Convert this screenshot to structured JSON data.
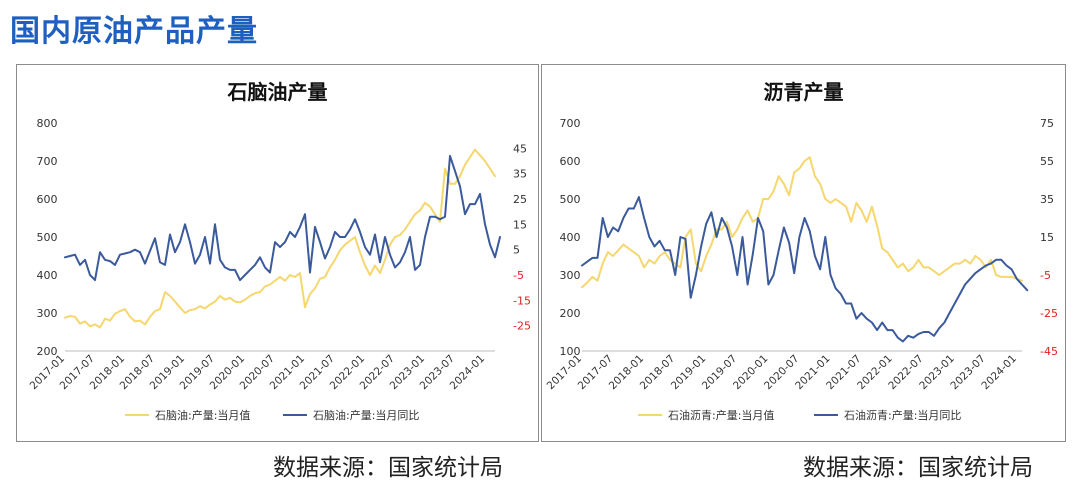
{
  "page": {
    "title": "国内原油产品产量",
    "source_left": "数据来源：国家统计局",
    "source_right": "数据来源：国家统计局"
  },
  "colors": {
    "title": "#1f5fbf",
    "value_line": "#f5d76e",
    "yoy_line": "#3a5a9c",
    "right_tick_neg": "#e02020",
    "axis_text": "#333333"
  },
  "chart_data": [
    {
      "type": "line",
      "title": "石脑油产量",
      "ylim_left": [
        200,
        800
      ],
      "yticks_left": [
        200,
        300,
        400,
        500,
        600,
        700,
        800
      ],
      "ylim_right": [
        -35,
        55
      ],
      "yticks_right": [
        45,
        35,
        25,
        15,
        5,
        -5,
        -15,
        -25
      ],
      "x_tick_labels": [
        "2017-01",
        "2017-07",
        "2018-01",
        "2018-07",
        "2019-01",
        "2019-07",
        "2020-01",
        "2020-07",
        "2021-01",
        "2021-07",
        "2022-01",
        "2022-07",
        "2023-01",
        "2023-07",
        "2024-01"
      ],
      "legend": [
        "石脑油:产量:当月值",
        "石脑油:产量:当月同比"
      ],
      "series": [
        {
          "name": "石脑油:产量:当月值",
          "axis": "left",
          "values": [
            288,
            292,
            290,
            272,
            278,
            265,
            270,
            262,
            285,
            280,
            298,
            305,
            310,
            290,
            278,
            280,
            270,
            290,
            305,
            310,
            355,
            345,
            330,
            315,
            300,
            308,
            310,
            318,
            312,
            322,
            330,
            345,
            335,
            340,
            330,
            328,
            335,
            345,
            352,
            355,
            370,
            375,
            385,
            395,
            385,
            400,
            395,
            405,
            315,
            350,
            365,
            390,
            395,
            420,
            440,
            465,
            480,
            490,
            500,
            460,
            425,
            400,
            425,
            405,
            440,
            480,
            500,
            505,
            520,
            540,
            560,
            570,
            590,
            580,
            560,
            540,
            680,
            640,
            640,
            660,
            690,
            710,
            730,
            715,
            700,
            680,
            660
          ]
        },
        {
          "name": "石脑油:产量:当月同比",
          "axis": "right",
          "values": [
            2,
            2.5,
            3,
            -1,
            1,
            -5,
            -7,
            4,
            1,
            0.5,
            -1,
            3,
            3.5,
            4,
            5,
            4,
            -0.5,
            4.5,
            9.5,
            0,
            -1,
            11,
            4,
            8,
            15,
            8,
            -0.5,
            3,
            10,
            -0.5,
            15,
            1,
            -2,
            -3,
            -3,
            -7,
            -5,
            -3,
            -1,
            2,
            -2,
            -4,
            8,
            6,
            8,
            12,
            10,
            14,
            19,
            -4,
            14,
            8,
            1.5,
            6,
            12,
            10,
            10,
            13,
            17,
            12,
            6,
            3,
            11,
            0,
            10,
            3,
            -2,
            0,
            4,
            10,
            -3,
            -1,
            10,
            18,
            18,
            17,
            18,
            42,
            36,
            30,
            19,
            23,
            23,
            27,
            15,
            7,
            2,
            10
          ]
        }
      ]
    },
    {
      "type": "line",
      "title": "沥青产量",
      "ylim_left": [
        100,
        700
      ],
      "yticks_left": [
        100,
        200,
        300,
        400,
        500,
        600,
        700
      ],
      "ylim_right": [
        -45,
        75
      ],
      "yticks_right": [
        75,
        55,
        35,
        15,
        -5,
        -25,
        -45
      ],
      "x_tick_labels": [
        "2017-01",
        "2017-07",
        "2018-01",
        "2018-07",
        "2019-01",
        "2019-07",
        "2020-01",
        "2020-07",
        "2021-01",
        "2021-07",
        "2022-01",
        "2022-07",
        "2023-01",
        "2023-07",
        "2024-01"
      ],
      "legend": [
        "石油沥青:产量:当月值",
        "石油沥青:产量:当月同比"
      ],
      "series": [
        {
          "name": "石油沥青:产量:当月值",
          "axis": "left",
          "values": [
            268,
            280,
            295,
            285,
            330,
            360,
            350,
            365,
            380,
            370,
            360,
            350,
            320,
            340,
            330,
            350,
            360,
            340,
            330,
            320,
            400,
            420,
            330,
            310,
            350,
            380,
            420,
            420,
            440,
            400,
            420,
            450,
            470,
            440,
            450,
            500,
            500,
            520,
            560,
            540,
            510,
            570,
            580,
            600,
            610,
            560,
            540,
            500,
            490,
            500,
            490,
            480,
            440,
            490,
            470,
            440,
            480,
            430,
            370,
            360,
            340,
            320,
            330,
            310,
            320,
            340,
            320,
            320,
            310,
            300,
            310,
            320,
            330,
            330,
            340,
            330,
            350,
            340,
            320,
            340,
            300,
            295,
            295,
            295,
            290,
            285
          ]
        },
        {
          "name": "石油沥青:产量:当月同比",
          "axis": "right",
          "values": [
            0,
            2,
            4,
            4,
            25,
            15,
            20,
            18,
            25,
            30,
            30,
            36,
            25,
            15,
            10,
            13,
            8,
            8,
            -5,
            15,
            14,
            -17,
            -5,
            10,
            22,
            28,
            15,
            25,
            20,
            10,
            -5,
            15,
            -10,
            6,
            25,
            18,
            -10,
            -5,
            8,
            20,
            12,
            -4,
            15,
            25,
            18,
            5,
            -2,
            15,
            -5,
            -12,
            -15,
            -20,
            -20,
            -28,
            -25,
            -28,
            -30,
            -34,
            -30,
            -34,
            -34,
            -38,
            -40,
            -37,
            -38,
            -36,
            -35,
            -35,
            -37,
            -33,
            -30,
            -25,
            -20,
            -15,
            -10,
            -7,
            -4,
            -2,
            0,
            1,
            3,
            3,
            0,
            -2,
            -7,
            -10,
            -13
          ]
        }
      ]
    }
  ]
}
